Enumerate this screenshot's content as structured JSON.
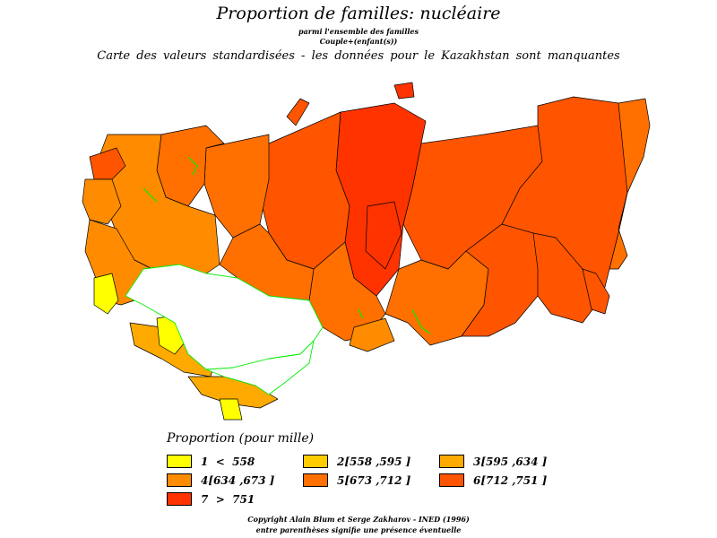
{
  "title": "Proportion de familles: nucléaire",
  "subtitle1": "parmi l'ensemble des familles",
  "subtitle2": "Couple+(enfant(s))",
  "subtitle3": "Carte des valeurs standardisées - les données pour le Kazakhstan sont manquantes",
  "legend": {
    "title": "Proportion (pour mille)",
    "items": [
      {
        "label": "1  <  558",
        "color": "#ffff00"
      },
      {
        "label": "2[558 ,595 ]",
        "color": "#ffcc00"
      },
      {
        "label": "3[595 ,634 ]",
        "color": "#ffaa00"
      },
      {
        "label": "4[634 ,673 ]",
        "color": "#ff8c00"
      },
      {
        "label": "5[673 ,712 ]",
        "color": "#ff7000"
      },
      {
        "label": "6[712 ,751 ]",
        "color": "#ff5500"
      },
      {
        "label": "7  >  751",
        "color": "#ff3300"
      }
    ]
  },
  "map_colors": {
    "missing": "#ffffff",
    "border": "#000000",
    "kazakhstan_border": "#00ee00"
  },
  "copyright": "Copyright Alain Blum et Serge Zakharov - INED (1996)",
  "note": "entre parenthèses signifie une présence éventuelle"
}
